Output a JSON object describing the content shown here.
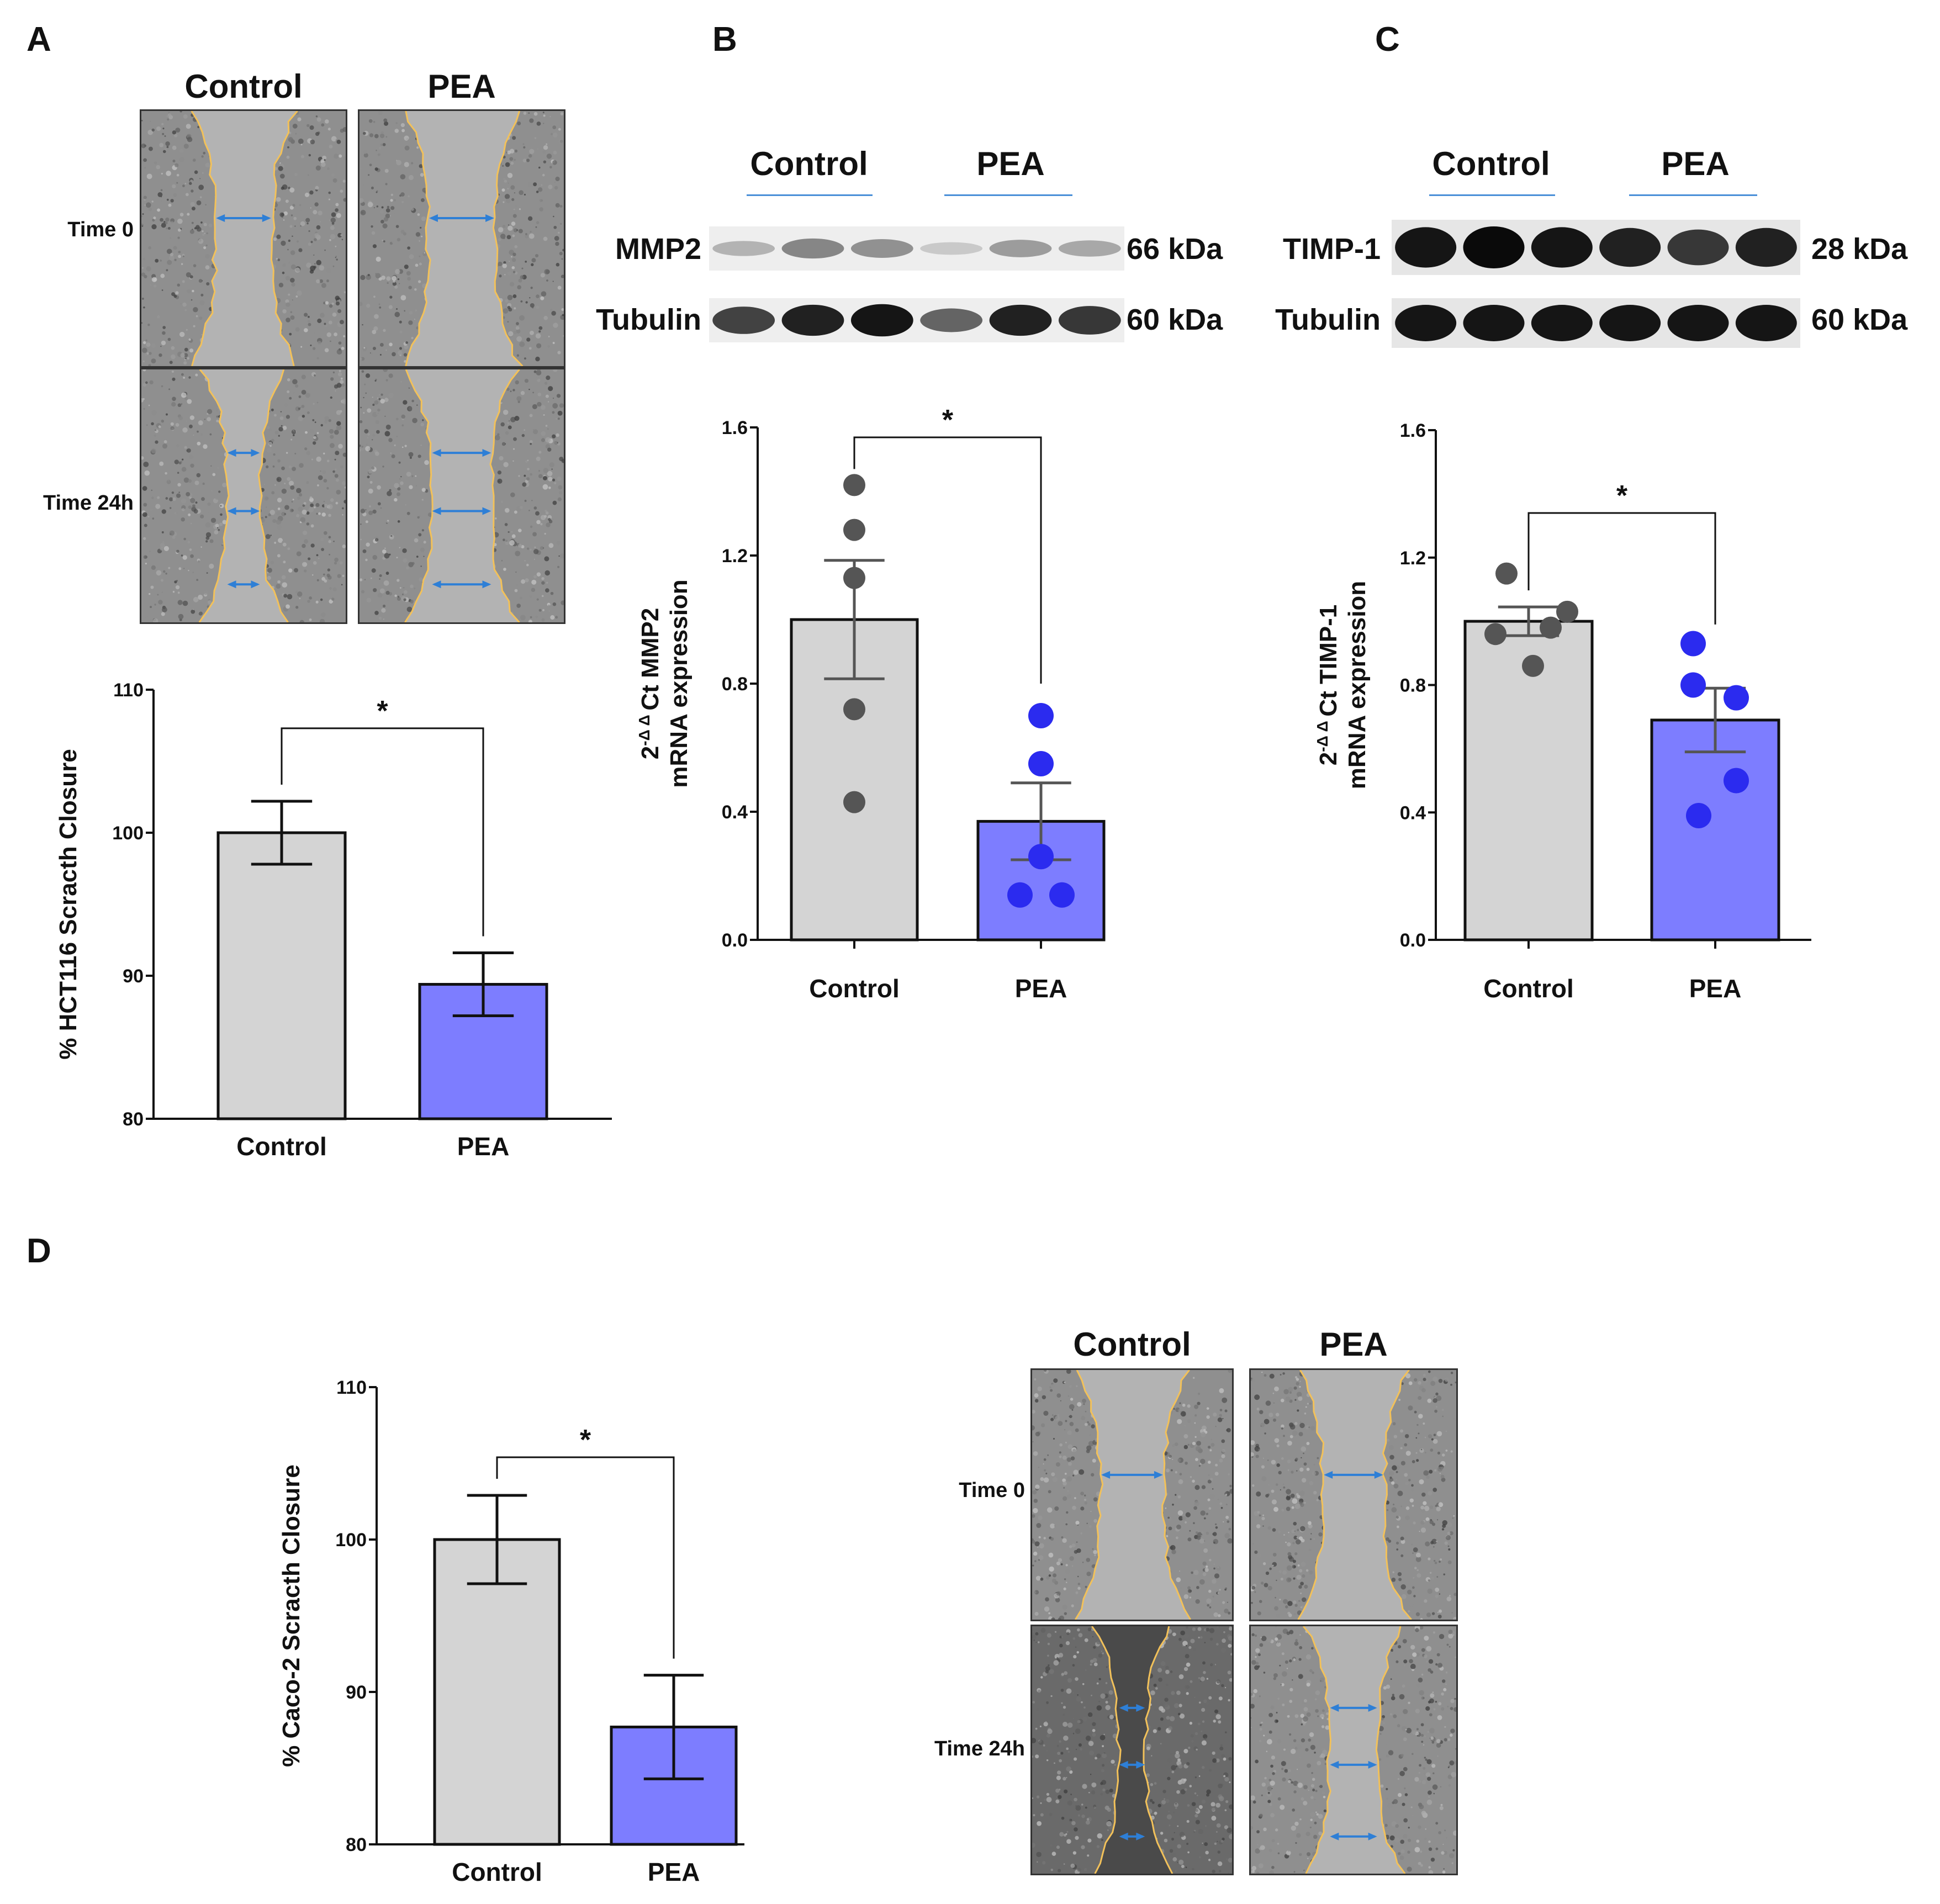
{
  "panels": {
    "A": "A",
    "B": "B",
    "C": "C",
    "D": "D"
  },
  "micro": {
    "control_label": "Control",
    "pea_label": "PEA",
    "time0_label": "Time 0",
    "time24_label": "Time 24h"
  },
  "blots": {
    "control_label": "Control",
    "pea_label": "PEA",
    "B": {
      "rows": [
        {
          "name": "MMP2",
          "kda": "66 kDa",
          "band_intensity": [
            0.25,
            0.45,
            0.4,
            0.15,
            0.35,
            0.3
          ]
        },
        {
          "name": "Tubulin",
          "kda": "60 kDa",
          "band_intensity": [
            0.75,
            0.9,
            0.95,
            0.6,
            0.9,
            0.8
          ]
        }
      ]
    },
    "C": {
      "rows": [
        {
          "name": "TIMP-1",
          "kda": "28 kDa",
          "band_intensity": [
            0.95,
            1.0,
            0.95,
            0.9,
            0.8,
            0.9
          ]
        },
        {
          "name": "Tubulin",
          "kda": "60 kDa",
          "band_intensity": [
            0.95,
            0.95,
            0.95,
            0.95,
            0.95,
            0.95
          ]
        }
      ]
    }
  },
  "chart_data": [
    {
      "id": "A",
      "type": "bar",
      "categories": [
        "Control",
        "PEA"
      ],
      "values": [
        100,
        89.4
      ],
      "errors": [
        2.2,
        2.2
      ],
      "ylabel": "% HCT116 Scracth Closure",
      "ylim": [
        80,
        110
      ],
      "yticks": [
        80,
        90,
        100,
        110
      ],
      "ytick_labels": [
        "80",
        "90",
        "100",
        "110"
      ],
      "significance": "*",
      "colors": [
        "#d4d4d4",
        "#7d7dff"
      ]
    },
    {
      "id": "B",
      "type": "bar",
      "categories": [
        "Control",
        "PEA"
      ],
      "values": [
        1.0,
        0.37
      ],
      "errors": [
        0.185,
        0.12
      ],
      "points": [
        [
          1.42,
          1.28,
          1.13,
          0.72,
          0.43
        ],
        [
          0.7,
          0.55,
          0.26,
          0.14,
          0.14
        ]
      ],
      "ylabel_line1": "2",
      "ylabel_sup": "-Δ Δ",
      "ylabel_rest": "Ct MMP2",
      "ylabel_line2": "mRNA expression",
      "ylim": [
        0,
        1.6
      ],
      "yticks": [
        0,
        0.4,
        0.8,
        1.2,
        1.6
      ],
      "ytick_labels": [
        "0.0",
        "0.4",
        "0.8",
        "1.2",
        "1.6"
      ],
      "significance": "*",
      "colors": [
        "#d4d4d4",
        "#7d7dff"
      ],
      "point_colors": [
        "#555555",
        "#2b2bef"
      ]
    },
    {
      "id": "C",
      "type": "bar",
      "categories": [
        "Control",
        "PEA"
      ],
      "values": [
        1.0,
        0.69
      ],
      "errors": [
        0.045,
        0.1
      ],
      "points": [
        [
          1.15,
          0.98,
          1.03,
          0.96,
          0.86
        ],
        [
          0.93,
          0.8,
          0.76,
          0.5,
          0.39
        ]
      ],
      "ylabel_line1": "2",
      "ylabel_sup": "-Δ Δ",
      "ylabel_rest": "Ct TIMP-1",
      "ylabel_line2": "mRNA expression",
      "ylim": [
        0,
        1.6
      ],
      "yticks": [
        0,
        0.4,
        0.8,
        1.2,
        1.6
      ],
      "ytick_labels": [
        "0.0",
        "0.4",
        "0.8",
        "1.2",
        "1.6"
      ],
      "significance": "*",
      "colors": [
        "#d4d4d4",
        "#7d7dff"
      ],
      "point_colors": [
        "#555555",
        "#2b2bef"
      ]
    },
    {
      "id": "D",
      "type": "bar",
      "categories": [
        "Control",
        "PEA"
      ],
      "values": [
        100,
        87.7
      ],
      "errors": [
        2.9,
        3.4
      ],
      "ylabel": "% Caco-2 Scracth Closure",
      "ylim": [
        80,
        110
      ],
      "yticks": [
        80,
        90,
        100,
        110
      ],
      "ytick_labels": [
        "80",
        "90",
        "100",
        "110"
      ],
      "significance": "*",
      "colors": [
        "#d4d4d4",
        "#7d7dff"
      ]
    }
  ]
}
